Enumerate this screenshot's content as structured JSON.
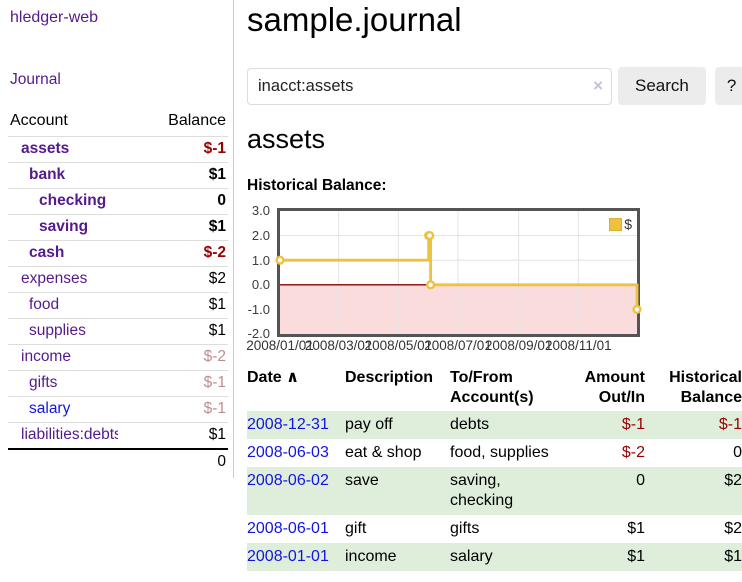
{
  "sidebar": {
    "title": "hledger-web",
    "journal_label": "Journal",
    "accounts": {
      "headers": {
        "account": "Account",
        "balance": "Balance"
      },
      "rows": [
        {
          "account": "assets",
          "balance": "$-1",
          "depth": 1
        },
        {
          "account": "bank",
          "balance": "$1",
          "depth": 2
        },
        {
          "account": "checking",
          "balance": "0",
          "depth": 3
        },
        {
          "account": "saving",
          "balance": "$1",
          "depth": 3
        },
        {
          "account": "cash",
          "balance": "$-2",
          "depth": 2
        },
        {
          "account": "expenses",
          "balance": "$2",
          "depth": 1
        },
        {
          "account": "food",
          "balance": "$1",
          "depth": 2
        },
        {
          "account": "supplies",
          "balance": "$1",
          "depth": 2
        },
        {
          "account": "income",
          "balance": "$-2",
          "depth": 1
        },
        {
          "account": "gifts",
          "balance": "$-1",
          "depth": 2
        },
        {
          "account": "salary",
          "balance": "$-1",
          "depth": 2
        },
        {
          "account": "liabilities:debts",
          "balance": "$1",
          "depth": 1
        }
      ],
      "total": "0"
    }
  },
  "main": {
    "title": "sample.journal",
    "search": {
      "value": "inacct:assets",
      "clear_icon": "×",
      "button_label": "Search",
      "help_label": "?"
    },
    "account_heading": "assets",
    "chart_label": "Historical Balance:"
  },
  "chart_data": {
    "type": "line",
    "step": true,
    "title": "Historical Balance",
    "legend": "$",
    "legend_position": "top-right",
    "x_range": [
      "2008-01-01",
      "2008-12-31"
    ],
    "ylim": [
      -2,
      3
    ],
    "yticks": [
      {
        "value": 3,
        "label": "3.0"
      },
      {
        "value": 2,
        "label": "2.0"
      },
      {
        "value": 1,
        "label": "1.0"
      },
      {
        "value": 0,
        "label": "0.0"
      },
      {
        "value": -1,
        "label": "-1.0"
      },
      {
        "value": -2,
        "label": "-2.0"
      }
    ],
    "xticks": [
      {
        "date": "2008-01-01",
        "label": "2008/01/01"
      },
      {
        "date": "2008-03-01",
        "label": "2008/03/01"
      },
      {
        "date": "2008-05-01",
        "label": "2008/05/01"
      },
      {
        "date": "2008-07-01",
        "label": "2008/07/01"
      },
      {
        "date": "2008-09-01",
        "label": "2008/09/01"
      },
      {
        "date": "2008-11-01",
        "label": "2008/11/01"
      }
    ],
    "series": [
      {
        "name": "$",
        "color": "#edc240",
        "points": [
          {
            "date": "2008-01-01",
            "value": 1
          },
          {
            "date": "2008-06-01",
            "value": 2
          },
          {
            "date": "2008-06-02",
            "value": 2
          },
          {
            "date": "2008-06-03",
            "value": 0
          },
          {
            "date": "2008-12-31",
            "value": -1
          }
        ]
      }
    ],
    "colors": {
      "line": "#edc240",
      "marker_fill": "#ffffff",
      "negative_region": "#fbdcdc",
      "zero_line": "#8b0000",
      "grid": "#e3e3e3",
      "border": "#545454"
    }
  },
  "register": {
    "headers": {
      "date": "Date",
      "sort_icon": "∧",
      "description": "Description",
      "account": "To/From Account(s)",
      "amount": "Amount Out/In",
      "balance": "Historical Balance"
    },
    "rows": [
      {
        "date": "2008-12-31",
        "description": "pay off",
        "account": "debts",
        "amount": "$-1",
        "balance": "$-1"
      },
      {
        "date": "2008-06-03",
        "description": "eat & shop",
        "account": "food, supplies",
        "amount": "$-2",
        "balance": "0"
      },
      {
        "date": "2008-06-02",
        "description": "save",
        "account": "saving, checking",
        "amount": "0",
        "balance": "$2"
      },
      {
        "date": "2008-06-01",
        "description": "gift",
        "account": "gifts",
        "amount": "$1",
        "balance": "$2"
      },
      {
        "date": "2008-01-01",
        "description": "income",
        "account": "salary",
        "amount": "$1",
        "balance": "$1"
      }
    ]
  },
  "colors": {
    "link_visited_purple": "#551a8b",
    "link_unvisited_blue": "#1414e0",
    "negative_strong": "#990000",
    "negative_faded": "#bc8f8f",
    "row_highlight_green": "#deeedb",
    "button_gray": "#ececec"
  }
}
